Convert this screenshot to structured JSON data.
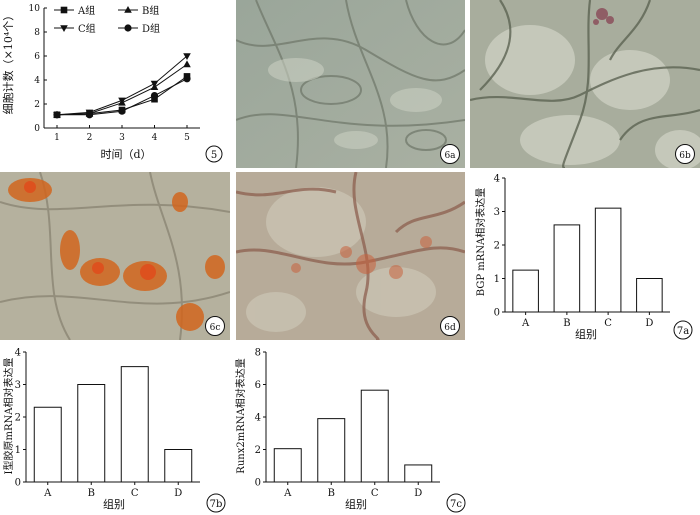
{
  "panel5": {
    "label": "5",
    "ylabel": "细胞计数（×10⁴个）",
    "xlabel": "时间（d）",
    "xticks": [
      "1",
      "2",
      "3",
      "4",
      "5"
    ],
    "yticks": [
      "0",
      "2",
      "4",
      "6",
      "8",
      "10"
    ],
    "legend": [
      "A组",
      "B组",
      "C组",
      "D组"
    ]
  },
  "photos": {
    "p6a": "6a",
    "p6b": "6b",
    "p6c": "6c",
    "p6d": "6d"
  },
  "panel7a": {
    "label": "7a",
    "ylabel": "BGP mRNA相对表达量",
    "xlabel": "组别",
    "categories": [
      "A",
      "B",
      "C",
      "D"
    ],
    "yticks": [
      "0",
      "1",
      "2",
      "3",
      "4"
    ]
  },
  "panel7b": {
    "label": "7b",
    "ylabel": "Ⅰ型胶原mRNA相对表达量",
    "xlabel": "组别",
    "categories": [
      "A",
      "B",
      "C",
      "D"
    ],
    "yticks": [
      "0",
      "1",
      "2",
      "3",
      "4"
    ]
  },
  "panel7c": {
    "label": "7c",
    "ylabel": "Runx2mRNA相对表达量",
    "xlabel": "组别",
    "categories": [
      "A",
      "B",
      "C",
      "D"
    ],
    "yticks": [
      "0",
      "2",
      "4",
      "6",
      "8"
    ]
  },
  "chart_data": [
    {
      "id": "fig5",
      "type": "line",
      "x": [
        1,
        2,
        3,
        4,
        5
      ],
      "xlabel": "时间（d）",
      "ylabel": "细胞计数（×10⁴个）",
      "ylim": [
        0,
        10
      ],
      "series": [
        {
          "name": "A组",
          "marker": "square",
          "values": [
            1.1,
            1.2,
            1.5,
            2.4,
            4.3
          ]
        },
        {
          "name": "B组",
          "marker": "triangle-up",
          "values": [
            1.1,
            1.2,
            2.1,
            3.4,
            5.3
          ]
        },
        {
          "name": "C组",
          "marker": "triangle-down",
          "values": [
            1.1,
            1.3,
            2.3,
            3.7,
            6.0
          ]
        },
        {
          "name": "D组",
          "marker": "circle",
          "values": [
            1.1,
            1.1,
            1.4,
            2.7,
            4.1
          ]
        }
      ],
      "legend_position": "top-left"
    },
    {
      "id": "fig7a",
      "type": "bar",
      "categories": [
        "A",
        "B",
        "C",
        "D"
      ],
      "values": [
        1.25,
        2.6,
        3.1,
        1.0
      ],
      "xlabel": "组别",
      "ylabel": "BGP mRNA相对表达量",
      "ylim": [
        0,
        4
      ]
    },
    {
      "id": "fig7b",
      "type": "bar",
      "categories": [
        "A",
        "B",
        "C",
        "D"
      ],
      "values": [
        2.3,
        3.0,
        3.55,
        1.0
      ],
      "xlabel": "组别",
      "ylabel": "Ⅰ型胶原mRNA相对表达量",
      "ylim": [
        0,
        4
      ]
    },
    {
      "id": "fig7c",
      "type": "bar",
      "categories": [
        "A",
        "B",
        "C",
        "D"
      ],
      "values": [
        2.05,
        3.9,
        5.65,
        1.05
      ],
      "xlabel": "组别",
      "ylabel": "Runx2mRNA相对表达量",
      "ylim": [
        0,
        8
      ]
    }
  ]
}
